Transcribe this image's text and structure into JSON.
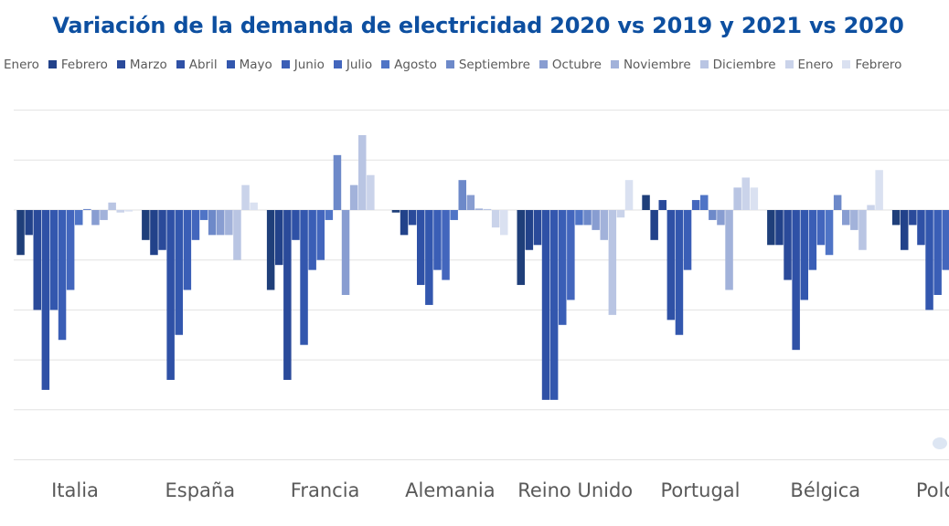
{
  "chart_data": {
    "type": "bar",
    "title": "Variación de la demanda de electricidad 2020 vs 2019 y 2021 vs 2020",
    "xlabel": "",
    "ylabel": "",
    "grid": true,
    "legend_position": "top",
    "ylim": [
      -50,
      20
    ],
    "categories": [
      "Italia",
      "España",
      "Francia",
      "Alemania",
      "Reino Unido",
      "Portugal",
      "Bélgica",
      "Polonia"
    ],
    "series": [
      {
        "name": "Enero",
        "color": "#1f3f7a",
        "values": [
          -9,
          -6,
          -16,
          -0.5,
          -15,
          3,
          -7,
          -3
        ]
      },
      {
        "name": "Febrero",
        "color": "#22428a",
        "values": [
          -5,
          -9,
          -11,
          -5,
          -8,
          -6,
          -7,
          -8
        ]
      },
      {
        "name": "Marzo",
        "color": "#2a4a9a",
        "values": [
          -20,
          -8,
          -34,
          -3,
          -7,
          2,
          -14,
          -3
        ]
      },
      {
        "name": "Abril",
        "color": "#2f51a6",
        "values": [
          -36,
          -34,
          -6,
          -15,
          -38,
          -22,
          -28,
          -7
        ]
      },
      {
        "name": "Mayo",
        "color": "#3357ae",
        "values": [
          -20,
          -25,
          -27,
          -19,
          -38,
          -25,
          -18,
          -20
        ]
      },
      {
        "name": "Junio",
        "color": "#3a5eb6",
        "values": [
          -26,
          -16,
          -12,
          -12,
          -23,
          -12,
          -12,
          -17
        ]
      },
      {
        "name": "Julio",
        "color": "#4366bd",
        "values": [
          -16,
          -6,
          -10,
          -14,
          -18,
          2,
          -7,
          -12
        ]
      },
      {
        "name": "Agosto",
        "color": "#4f74c6",
        "values": [
          -3,
          -2,
          -2,
          -2,
          -3,
          3,
          -9,
          -5
        ]
      },
      {
        "name": "Septiembre",
        "color": "#6d89c9",
        "values": [
          0.2,
          -5,
          11,
          6,
          -3,
          -2,
          3,
          null
        ]
      },
      {
        "name": "Octubre",
        "color": "#889dd1",
        "values": [
          -3,
          -5,
          -17,
          3,
          -4,
          -3,
          -3,
          null
        ]
      },
      {
        "name": "Noviembre",
        "color": "#a2b2da",
        "values": [
          -2,
          -5,
          5,
          0.3,
          -6,
          -16,
          -4,
          null
        ]
      },
      {
        "name": "Diciembre",
        "color": "#b9c5e3",
        "values": [
          1.5,
          -10,
          15,
          0.2,
          -21,
          4.5,
          -8,
          null
        ]
      },
      {
        "name": "Enero",
        "color": "#cad3ea",
        "values": [
          -0.5,
          5,
          7,
          -3.5,
          -1.5,
          6.5,
          1,
          null
        ]
      },
      {
        "name": "Febrero",
        "color": "#dae1f1",
        "values": [
          -0.3,
          1.5,
          null,
          -5,
          6,
          4.5,
          8,
          null
        ]
      }
    ]
  }
}
